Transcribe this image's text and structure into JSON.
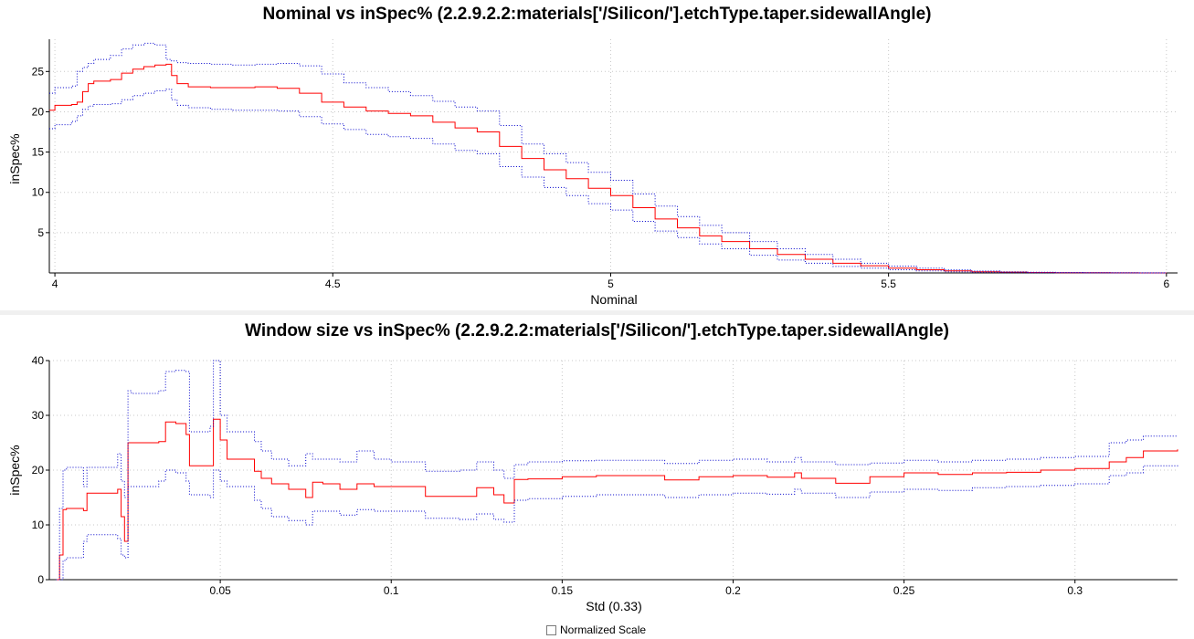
{
  "charts": {
    "nominal": {
      "title": "Nominal vs inSpec% (2.2.9.2.2:materials['/Silicon/'].etchType.taper.sidewallAngle)",
      "xlabel": "Nominal",
      "ylabel": "inSpec%"
    },
    "window": {
      "title": "Window size vs inSpec% (2.2.9.2.2:materials['/Silicon/'].etchType.taper.sidewallAngle)",
      "xlabel": "Std (0.33)",
      "ylabel": "inSpec%"
    }
  },
  "controls": {
    "normalized_scale_label": "Normalized Scale",
    "normalized_scale_checked": false
  },
  "chart_data": [
    {
      "type": "line",
      "title": "Nominal vs inSpec% (2.2.9.2.2:materials['/Silicon/'].etchType.taper.sidewallAngle)",
      "xlabel": "Nominal",
      "ylabel": "inSpec%",
      "xlim": [
        3.99,
        6.02
      ],
      "ylim": [
        0,
        29
      ],
      "xticks": [
        "4",
        "4.5",
        "5",
        "5.5",
        "6"
      ],
      "yticks": [
        "5",
        "10",
        "15",
        "20",
        "25"
      ],
      "grid": true,
      "series": [
        {
          "color": "#ff0000",
          "style": "solid",
          "x": [
            3.99,
            4.0,
            4.03,
            4.04,
            4.05,
            4.06,
            4.07,
            4.1,
            4.12,
            4.14,
            4.16,
            4.18,
            4.2,
            4.21,
            4.22,
            4.24,
            4.28,
            4.32,
            4.36,
            4.4,
            4.44,
            4.48,
            4.52,
            4.56,
            4.6,
            4.64,
            4.68,
            4.72,
            4.76,
            4.8,
            4.84,
            4.88,
            4.92,
            4.96,
            5.0,
            5.04,
            5.08,
            5.12,
            5.16,
            5.2,
            5.25,
            5.3,
            5.35,
            5.4,
            5.45,
            5.5,
            5.55,
            5.6,
            5.65,
            5.7,
            5.75,
            5.8,
            5.85,
            5.9,
            5.95,
            6.0
          ],
          "y": [
            20.2,
            20.8,
            20.9,
            21.2,
            22.5,
            23.5,
            23.8,
            24.0,
            24.8,
            25.3,
            25.6,
            25.8,
            25.9,
            24.5,
            23.5,
            23.1,
            23.0,
            23.0,
            23.1,
            22.9,
            22.3,
            21.2,
            20.6,
            20.1,
            19.8,
            19.5,
            18.7,
            18.0,
            17.5,
            15.7,
            14.2,
            12.8,
            11.7,
            10.5,
            9.6,
            8.1,
            6.7,
            5.6,
            4.6,
            3.9,
            3.0,
            2.3,
            1.7,
            1.2,
            0.9,
            0.6,
            0.4,
            0.25,
            0.15,
            0.1,
            0.06,
            0.03,
            0.02,
            0.01,
            0.0,
            0.0
          ]
        },
        {
          "color": "#0000cc",
          "style": "dotted",
          "x": [
            3.99,
            4.0,
            4.03,
            4.04,
            4.05,
            4.06,
            4.07,
            4.1,
            4.12,
            4.14,
            4.16,
            4.18,
            4.2,
            4.21,
            4.22,
            4.24,
            4.28,
            4.32,
            4.36,
            4.4,
            4.44,
            4.48,
            4.52,
            4.56,
            4.6,
            4.64,
            4.68,
            4.72,
            4.76,
            4.8,
            4.84,
            4.88,
            4.92,
            4.96,
            5.0,
            5.04,
            5.08,
            5.12,
            5.16,
            5.2,
            5.25,
            5.3,
            5.35,
            5.4,
            5.45,
            5.5,
            5.55,
            5.6,
            5.65,
            5.7,
            5.75,
            5.8,
            5.85,
            5.9,
            5.95,
            6.0
          ],
          "y": [
            22.3,
            23.0,
            23.2,
            25.0,
            25.5,
            26.0,
            26.5,
            27.0,
            27.8,
            28.3,
            28.5,
            28.3,
            26.5,
            26.3,
            26.1,
            26.0,
            25.9,
            25.8,
            25.9,
            26.0,
            25.7,
            24.7,
            23.6,
            23.0,
            22.5,
            22.0,
            21.3,
            20.6,
            20.1,
            18.3,
            16.0,
            14.8,
            13.7,
            12.5,
            11.5,
            9.8,
            8.3,
            7.0,
            5.9,
            5.0,
            3.9,
            3.0,
            2.3,
            1.7,
            1.2,
            0.85,
            0.6,
            0.38,
            0.24,
            0.15,
            0.09,
            0.05,
            0.03,
            0.02,
            0.01,
            0.0
          ]
        },
        {
          "color": "#0000cc",
          "style": "dotted",
          "x": [
            3.99,
            4.0,
            4.03,
            4.04,
            4.05,
            4.06,
            4.07,
            4.1,
            4.12,
            4.14,
            4.16,
            4.18,
            4.2,
            4.21,
            4.22,
            4.24,
            4.28,
            4.32,
            4.36,
            4.4,
            4.44,
            4.48,
            4.52,
            4.56,
            4.6,
            4.64,
            4.68,
            4.72,
            4.76,
            4.8,
            4.84,
            4.88,
            4.92,
            4.96,
            5.0,
            5.04,
            5.08,
            5.12,
            5.16,
            5.2,
            5.25,
            5.3,
            5.35,
            5.4,
            5.45,
            5.5,
            5.55,
            5.6,
            5.65,
            5.7,
            5.75,
            5.8,
            5.85,
            5.9,
            5.95,
            6.0
          ],
          "y": [
            17.9,
            18.4,
            18.8,
            19.5,
            20.3,
            20.7,
            20.9,
            21.0,
            21.5,
            22.0,
            22.3,
            22.6,
            22.8,
            21.5,
            20.8,
            20.5,
            20.3,
            20.2,
            20.2,
            20.1,
            19.4,
            18.5,
            17.8,
            17.2,
            16.9,
            16.7,
            16.0,
            15.2,
            14.8,
            13.2,
            11.9,
            10.6,
            9.6,
            8.6,
            7.8,
            6.4,
            5.2,
            4.4,
            3.6,
            3.0,
            2.2,
            1.6,
            1.2,
            0.8,
            0.6,
            0.4,
            0.25,
            0.15,
            0.09,
            0.05,
            0.03,
            0.02,
            0.01,
            0.0,
            0.0,
            0.0
          ]
        }
      ]
    },
    {
      "type": "line",
      "title": "Window size vs inSpec% (2.2.9.2.2:materials['/Silicon/'].etchType.taper.sidewallAngle)",
      "xlabel": "Std (0.33)",
      "ylabel": "inSpec%",
      "xlim": [
        0.0,
        0.33
      ],
      "ylim": [
        0,
        40
      ],
      "xticks": [
        "0.05",
        "0.1",
        "0.15",
        "0.2",
        "0.25",
        "0.3"
      ],
      "yticks": [
        "0",
        "10",
        "20",
        "30",
        "40"
      ],
      "grid": true,
      "series": [
        {
          "color": "#ff0000",
          "style": "solid",
          "x": [
            0.002,
            0.003,
            0.004,
            0.005,
            0.01,
            0.011,
            0.02,
            0.021,
            0.022,
            0.023,
            0.024,
            0.032,
            0.034,
            0.037,
            0.04,
            0.041,
            0.047,
            0.048,
            0.05,
            0.052,
            0.06,
            0.062,
            0.065,
            0.07,
            0.075,
            0.077,
            0.08,
            0.085,
            0.09,
            0.095,
            0.1,
            0.11,
            0.12,
            0.125,
            0.13,
            0.133,
            0.136,
            0.14,
            0.15,
            0.16,
            0.17,
            0.18,
            0.19,
            0.2,
            0.21,
            0.218,
            0.22,
            0.23,
            0.24,
            0.25,
            0.26,
            0.27,
            0.28,
            0.29,
            0.3,
            0.31,
            0.315,
            0.32,
            0.33
          ],
          "y": [
            0,
            4.5,
            12.8,
            13.0,
            12.6,
            15.8,
            16.5,
            11.5,
            7.0,
            25.0,
            25.0,
            25.2,
            28.8,
            28.5,
            26.5,
            20.8,
            20.8,
            29.3,
            25.5,
            22.0,
            19.8,
            18.5,
            17.5,
            16.5,
            15.0,
            17.8,
            17.5,
            16.5,
            17.5,
            17.0,
            17.0,
            15.2,
            15.2,
            16.8,
            15.5,
            14.0,
            18.3,
            18.4,
            18.8,
            19.0,
            19.0,
            18.2,
            18.8,
            19.0,
            18.7,
            19.5,
            18.5,
            17.6,
            18.8,
            19.5,
            19.2,
            19.5,
            19.6,
            20.0,
            20.3,
            21.5,
            22.3,
            23.5,
            23.8
          ]
        },
        {
          "color": "#0000cc",
          "style": "dotted",
          "x": [
            0.002,
            0.003,
            0.004,
            0.005,
            0.01,
            0.011,
            0.02,
            0.021,
            0.022,
            0.023,
            0.024,
            0.032,
            0.034,
            0.037,
            0.04,
            0.041,
            0.047,
            0.048,
            0.05,
            0.052,
            0.06,
            0.062,
            0.065,
            0.07,
            0.075,
            0.077,
            0.08,
            0.085,
            0.09,
            0.095,
            0.1,
            0.11,
            0.12,
            0.125,
            0.13,
            0.133,
            0.136,
            0.14,
            0.15,
            0.16,
            0.17,
            0.18,
            0.19,
            0.2,
            0.21,
            0.218,
            0.22,
            0.23,
            0.24,
            0.25,
            0.26,
            0.27,
            0.28,
            0.29,
            0.3,
            0.31,
            0.315,
            0.32,
            0.33
          ],
          "y": [
            0,
            13.0,
            20.0,
            20.5,
            17.0,
            20.5,
            23.0,
            18.0,
            15.0,
            34.5,
            34.0,
            34.5,
            38.0,
            38.2,
            38.0,
            27.0,
            28.0,
            40.0,
            30.0,
            27.0,
            25.2,
            23.5,
            22.0,
            20.8,
            23.0,
            22.0,
            22.0,
            21.5,
            23.5,
            22.0,
            21.5,
            19.8,
            20.0,
            21.5,
            20.0,
            18.5,
            21.0,
            21.5,
            21.7,
            21.8,
            21.8,
            21.2,
            21.8,
            22.0,
            21.5,
            22.3,
            21.5,
            21.0,
            21.3,
            21.8,
            21.5,
            21.8,
            22.0,
            22.3,
            22.5,
            25.0,
            25.5,
            26.2,
            26.3
          ]
        },
        {
          "color": "#0000cc",
          "style": "dotted",
          "x": [
            0.002,
            0.003,
            0.004,
            0.005,
            0.01,
            0.011,
            0.02,
            0.021,
            0.022,
            0.023,
            0.024,
            0.032,
            0.034,
            0.037,
            0.04,
            0.041,
            0.047,
            0.048,
            0.05,
            0.052,
            0.06,
            0.062,
            0.065,
            0.07,
            0.075,
            0.077,
            0.08,
            0.085,
            0.09,
            0.095,
            0.1,
            0.11,
            0.12,
            0.125,
            0.13,
            0.133,
            0.136,
            0.14,
            0.15,
            0.16,
            0.17,
            0.18,
            0.19,
            0.2,
            0.21,
            0.218,
            0.22,
            0.23,
            0.24,
            0.25,
            0.26,
            0.27,
            0.28,
            0.29,
            0.3,
            0.31,
            0.315,
            0.32,
            0.33
          ],
          "y": [
            0,
            0,
            3.5,
            4.0,
            7.0,
            8.2,
            7.5,
            4.5,
            4.0,
            17.0,
            17.0,
            18.0,
            20.0,
            19.5,
            18.0,
            15.5,
            15.0,
            20.0,
            18.0,
            17.0,
            14.5,
            13.0,
            11.5,
            10.8,
            10.0,
            12.5,
            12.5,
            11.8,
            12.8,
            12.5,
            12.5,
            11.2,
            11.0,
            12.0,
            11.0,
            10.5,
            14.5,
            14.8,
            15.2,
            15.5,
            15.5,
            15.0,
            15.5,
            15.8,
            15.6,
            16.5,
            15.8,
            15.0,
            16.0,
            16.5,
            16.3,
            16.8,
            17.0,
            17.2,
            17.5,
            19.0,
            19.5,
            20.8,
            21.0
          ]
        }
      ]
    }
  ]
}
